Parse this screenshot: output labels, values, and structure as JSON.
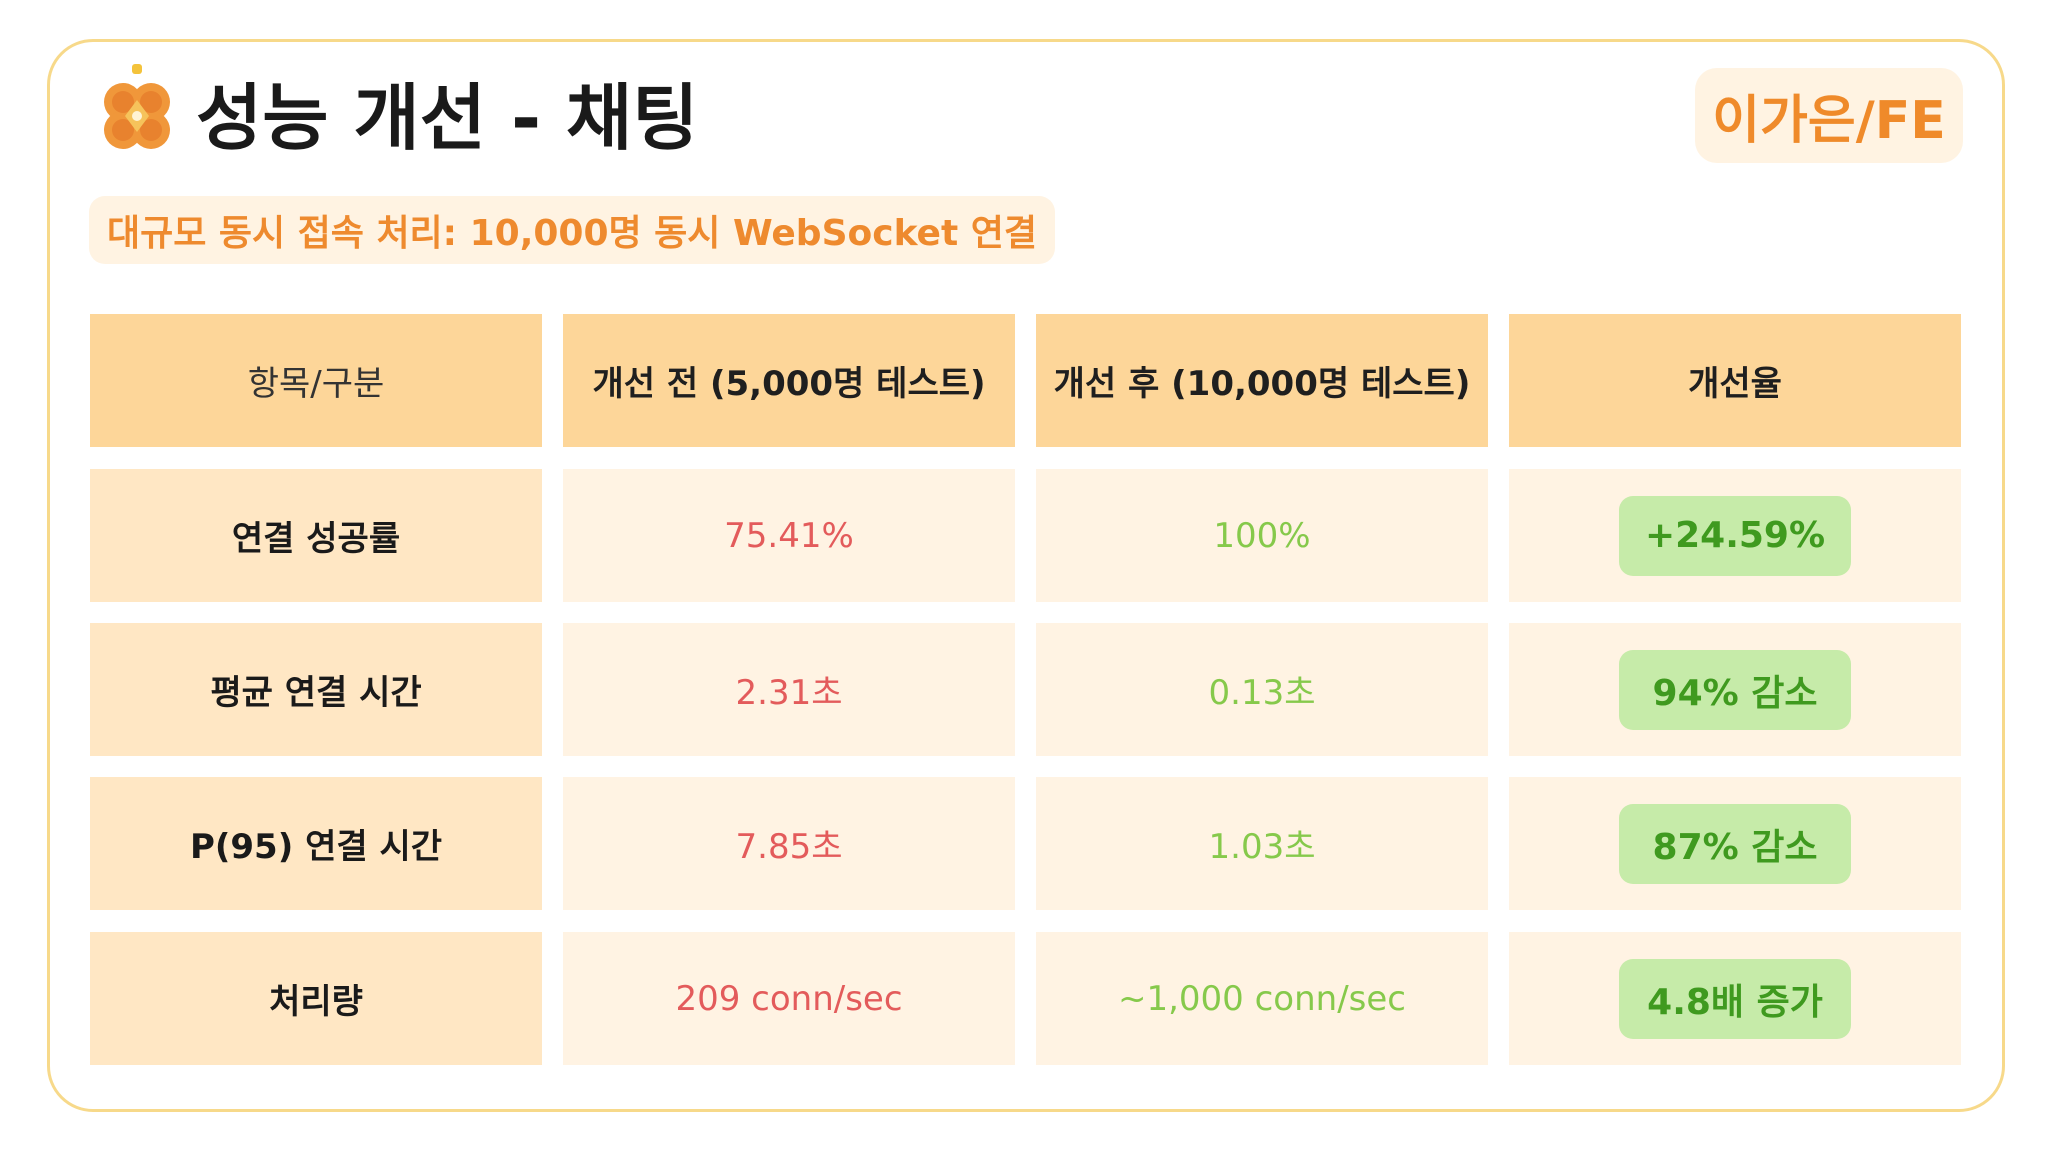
{
  "slide": {
    "title": "성능 개선 - 채팅",
    "author": "이가은/FE",
    "subtitle": "대규모 동시 접속 처리: 10,000명 동시 WebSocket 연결"
  },
  "table": {
    "headers": [
      "항목/구분",
      "개선 전 (5,000명 테스트)",
      "개선 후 (10,000명 테스트)",
      "개선율"
    ],
    "rows": [
      {
        "label": "연결 성공률",
        "before": "75.41%",
        "after": "100%",
        "improvement": "+24.59%"
      },
      {
        "label": "평균 연결 시간",
        "before": "2.31초",
        "after": "0.13초",
        "improvement": "94% 감소"
      },
      {
        "label": "P(95) 연결 시간",
        "before": "7.85초",
        "after": "1.03초",
        "improvement": "87% 감소"
      },
      {
        "label": "처리량",
        "before": "209 conn/sec",
        "after": "~1,000 conn/sec",
        "improvement": "4.8배 증가"
      }
    ]
  },
  "colors": {
    "accent": "#ef8a2a",
    "header_bg": "#fdd699",
    "label_bg": "#ffe7c4",
    "value_bg": "#fff3e3",
    "before_text": "#e35b5b",
    "after_text": "#86c94b",
    "improvement_bg": "#c6eba9",
    "improvement_text": "#3f9a1f"
  },
  "icons": {
    "logo": "orange-clover-logo-icon"
  }
}
